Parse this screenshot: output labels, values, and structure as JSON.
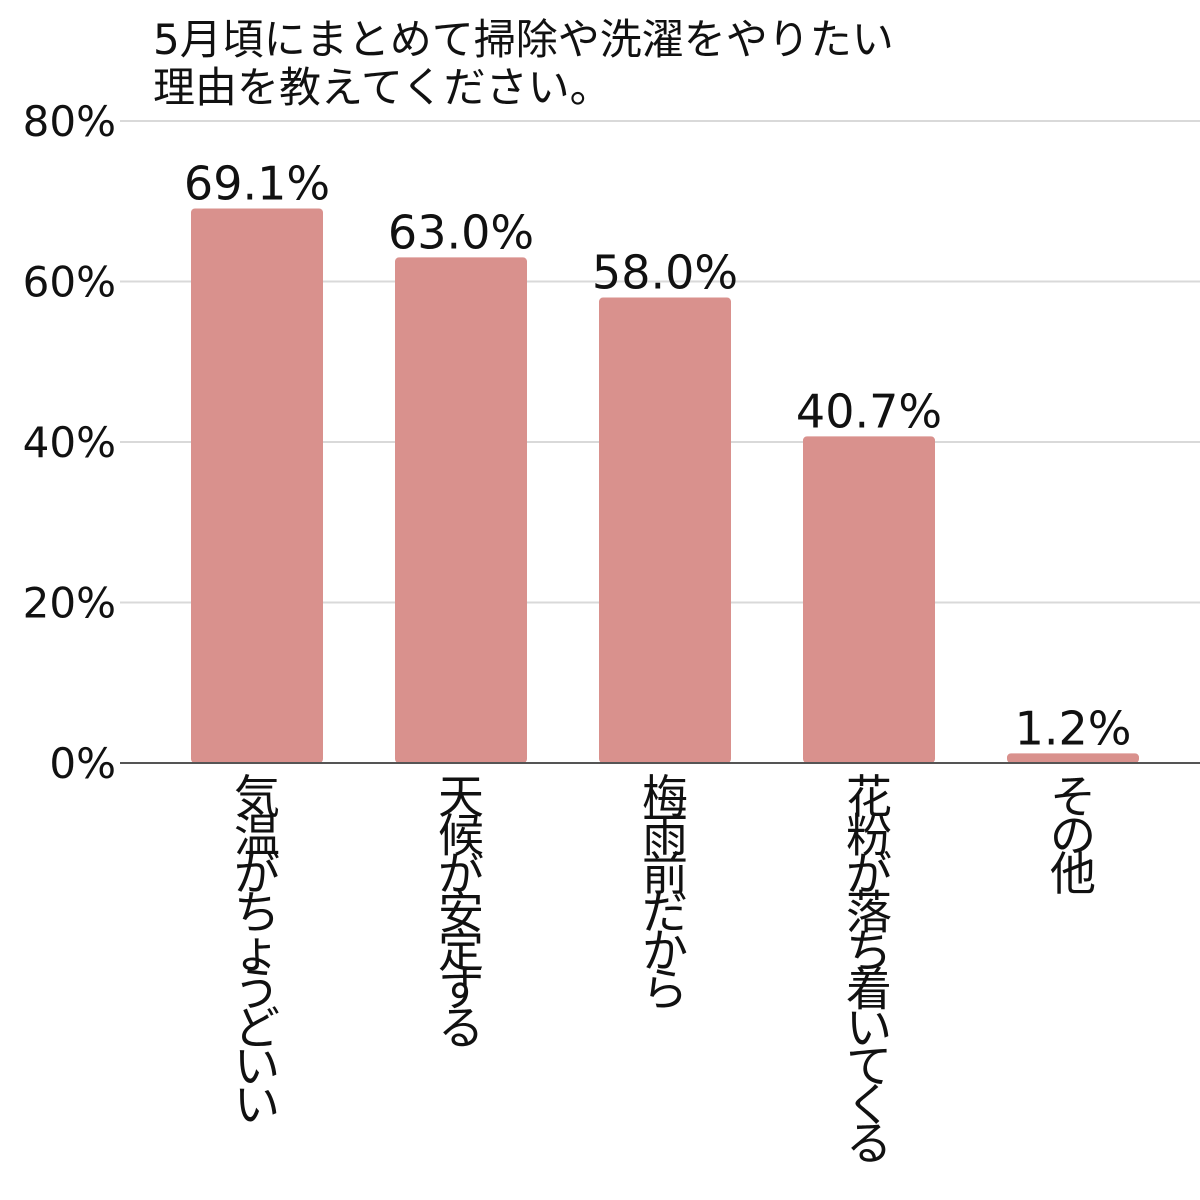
{
  "chart_data": {
    "type": "bar",
    "title_lines": [
      "5月頃にまとめて掃除や洗濯をやりたい",
      "理由を教えてください。"
    ],
    "categories": [
      "気温がちょうどいい",
      "天候が安定する",
      "梅雨前だから",
      "花粉が落ち着いてくる",
      "その他"
    ],
    "values": [
      69.1,
      63.0,
      58.0,
      40.7,
      1.2
    ],
    "value_labels": [
      "69.1%",
      "63.0%",
      "58.0%",
      "40.7%",
      "1.2%"
    ],
    "yticks": [
      0,
      20,
      40,
      60,
      80
    ],
    "ytick_labels": [
      "0%",
      "20%",
      "40%",
      "60%",
      "80%"
    ],
    "ylim": [
      0,
      80
    ],
    "grid": true,
    "legend": "none",
    "colors": {
      "bar": "#d9918d",
      "grid": "#d9d9d9",
      "axis": "#555555",
      "text": "#111111"
    }
  }
}
